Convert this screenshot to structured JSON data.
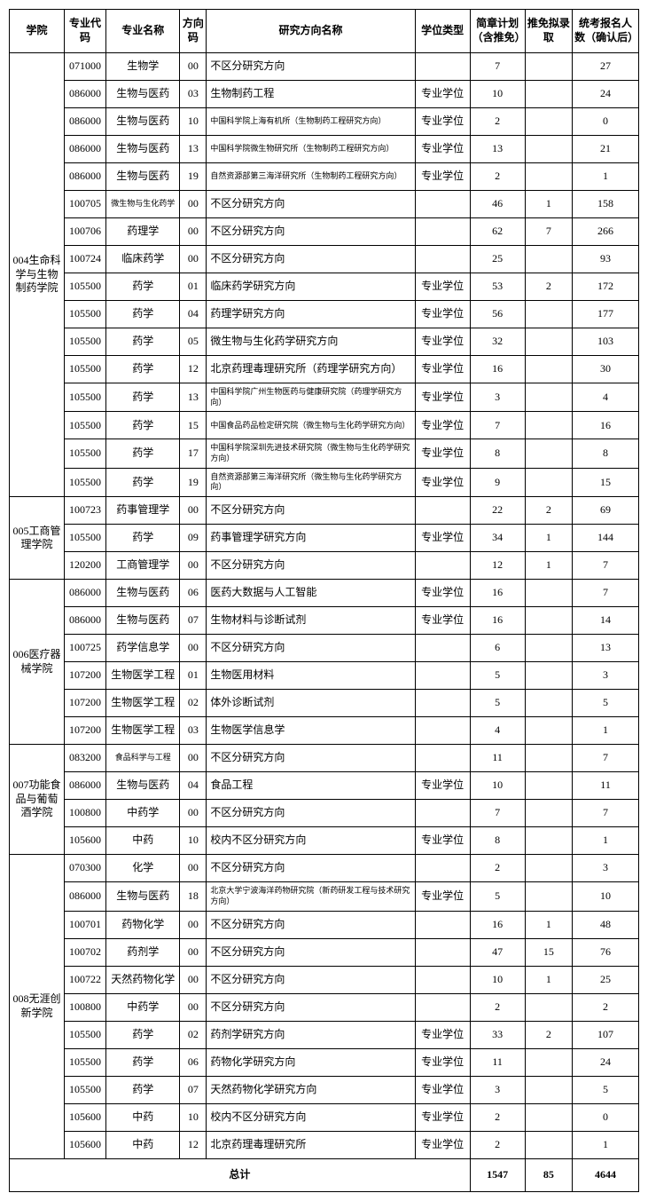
{
  "headers": {
    "college": "学院",
    "major_code": "专业代码",
    "major_name": "专业名称",
    "dir_code": "方向码",
    "dir_name": "研究方向名称",
    "deg_type": "学位类型",
    "plan": "简章计划（含推免）",
    "exempt": "推免拟录取",
    "enroll": "统考报名人数（确认后）"
  },
  "groups": [
    {
      "college": "004生命科学与生物制药学院",
      "rows": [
        {
          "mc": "071000",
          "mn": "生物学",
          "dc": "00",
          "dn": "不区分研究方向",
          "dt": "",
          "p": "7",
          "e": "",
          "en": "27",
          "small": false
        },
        {
          "mc": "086000",
          "mn": "生物与医药",
          "dc": "03",
          "dn": "生物制药工程",
          "dt": "专业学位",
          "p": "10",
          "e": "",
          "en": "24",
          "small": false
        },
        {
          "mc": "086000",
          "mn": "生物与医药",
          "dc": "10",
          "dn": "中国科学院上海有机所（生物制药工程研究方向）",
          "dt": "专业学位",
          "p": "2",
          "e": "",
          "en": "0",
          "small": true
        },
        {
          "mc": "086000",
          "mn": "生物与医药",
          "dc": "13",
          "dn": "中国科学院微生物研究所（生物制药工程研究方向）",
          "dt": "专业学位",
          "p": "13",
          "e": "",
          "en": "21",
          "small": true
        },
        {
          "mc": "086000",
          "mn": "生物与医药",
          "dc": "19",
          "dn": "自然资源部第三海洋研究所（生物制药工程研究方向）",
          "dt": "专业学位",
          "p": "2",
          "e": "",
          "en": "1",
          "small": true
        },
        {
          "mc": "100705",
          "mn": "微生物与生化药学",
          "dc": "00",
          "dn": "不区分研究方向",
          "dt": "",
          "p": "46",
          "e": "1",
          "en": "158",
          "small": false,
          "mn_small": true
        },
        {
          "mc": "100706",
          "mn": "药理学",
          "dc": "00",
          "dn": "不区分研究方向",
          "dt": "",
          "p": "62",
          "e": "7",
          "en": "266",
          "small": false
        },
        {
          "mc": "100724",
          "mn": "临床药学",
          "dc": "00",
          "dn": "不区分研究方向",
          "dt": "",
          "p": "25",
          "e": "",
          "en": "93",
          "small": false
        },
        {
          "mc": "105500",
          "mn": "药学",
          "dc": "01",
          "dn": "临床药学研究方向",
          "dt": "专业学位",
          "p": "53",
          "e": "2",
          "en": "172",
          "small": false
        },
        {
          "mc": "105500",
          "mn": "药学",
          "dc": "04",
          "dn": "药理学研究方向",
          "dt": "专业学位",
          "p": "56",
          "e": "",
          "en": "177",
          "small": false
        },
        {
          "mc": "105500",
          "mn": "药学",
          "dc": "05",
          "dn": "微生物与生化药学研究方向",
          "dt": "专业学位",
          "p": "32",
          "e": "",
          "en": "103",
          "small": false
        },
        {
          "mc": "105500",
          "mn": "药学",
          "dc": "12",
          "dn": "北京药理毒理研究所（药理学研究方向）",
          "dt": "专业学位",
          "p": "16",
          "e": "",
          "en": "30",
          "small": false
        },
        {
          "mc": "105500",
          "mn": "药学",
          "dc": "13",
          "dn": "中国科学院广州生物医药与健康研究院（药理学研究方向）",
          "dt": "专业学位",
          "p": "3",
          "e": "",
          "en": "4",
          "small": true
        },
        {
          "mc": "105500",
          "mn": "药学",
          "dc": "15",
          "dn": "中国食品药品检定研究院（微生物与生化药学研究方向）",
          "dt": "专业学位",
          "p": "7",
          "e": "",
          "en": "16",
          "small": true
        },
        {
          "mc": "105500",
          "mn": "药学",
          "dc": "17",
          "dn": "中国科学院深圳先进技术研究院（微生物与生化药学研究方向）",
          "dt": "专业学位",
          "p": "8",
          "e": "",
          "en": "8",
          "small": true
        },
        {
          "mc": "105500",
          "mn": "药学",
          "dc": "19",
          "dn": "自然资源部第三海洋研究所（微生物与生化药学研究方向）",
          "dt": "专业学位",
          "p": "9",
          "e": "",
          "en": "15",
          "small": true
        }
      ]
    },
    {
      "college": "005工商管理学院",
      "rows": [
        {
          "mc": "100723",
          "mn": "药事管理学",
          "dc": "00",
          "dn": "不区分研究方向",
          "dt": "",
          "p": "22",
          "e": "2",
          "en": "69",
          "small": false
        },
        {
          "mc": "105500",
          "mn": "药学",
          "dc": "09",
          "dn": "药事管理学研究方向",
          "dt": "专业学位",
          "p": "34",
          "e": "1",
          "en": "144",
          "small": false
        },
        {
          "mc": "120200",
          "mn": "工商管理学",
          "dc": "00",
          "dn": "不区分研究方向",
          "dt": "",
          "p": "12",
          "e": "1",
          "en": "7",
          "small": false
        }
      ]
    },
    {
      "college": "006医疗器械学院",
      "rows": [
        {
          "mc": "086000",
          "mn": "生物与医药",
          "dc": "06",
          "dn": "医药大数据与人工智能",
          "dt": "专业学位",
          "p": "16",
          "e": "",
          "en": "7",
          "small": false
        },
        {
          "mc": "086000",
          "mn": "生物与医药",
          "dc": "07",
          "dn": "生物材料与诊断试剂",
          "dt": "专业学位",
          "p": "16",
          "e": "",
          "en": "14",
          "small": false
        },
        {
          "mc": "100725",
          "mn": "药学信息学",
          "dc": "00",
          "dn": "不区分研究方向",
          "dt": "",
          "p": "6",
          "e": "",
          "en": "13",
          "small": false
        },
        {
          "mc": "107200",
          "mn": "生物医学工程",
          "dc": "01",
          "dn": "生物医用材料",
          "dt": "",
          "p": "5",
          "e": "",
          "en": "3",
          "small": false
        },
        {
          "mc": "107200",
          "mn": "生物医学工程",
          "dc": "02",
          "dn": "体外诊断试剂",
          "dt": "",
          "p": "5",
          "e": "",
          "en": "5",
          "small": false
        },
        {
          "mc": "107200",
          "mn": "生物医学工程",
          "dc": "03",
          "dn": "生物医学信息学",
          "dt": "",
          "p": "4",
          "e": "",
          "en": "1",
          "small": false
        }
      ]
    },
    {
      "college": "007功能食品与葡萄酒学院",
      "rows": [
        {
          "mc": "083200",
          "mn": "食品科学与工程",
          "dc": "00",
          "dn": "不区分研究方向",
          "dt": "",
          "p": "11",
          "e": "",
          "en": "7",
          "small": false,
          "mn_small": true
        },
        {
          "mc": "086000",
          "mn": "生物与医药",
          "dc": "04",
          "dn": "食品工程",
          "dt": "专业学位",
          "p": "10",
          "e": "",
          "en": "11",
          "small": false
        },
        {
          "mc": "100800",
          "mn": "中药学",
          "dc": "00",
          "dn": "不区分研究方向",
          "dt": "",
          "p": "7",
          "e": "",
          "en": "7",
          "small": false
        },
        {
          "mc": "105600",
          "mn": "中药",
          "dc": "10",
          "dn": "校内不区分研究方向",
          "dt": "专业学位",
          "p": "8",
          "e": "",
          "en": "1",
          "small": false
        }
      ]
    },
    {
      "college": "008无涯创新学院",
      "rows": [
        {
          "mc": "070300",
          "mn": "化学",
          "dc": "00",
          "dn": "不区分研究方向",
          "dt": "",
          "p": "2",
          "e": "",
          "en": "3",
          "small": false
        },
        {
          "mc": "086000",
          "mn": "生物与医药",
          "dc": "18",
          "dn": "北京大学宁波海洋药物研究院（新药研发工程与技术研究方向）",
          "dt": "专业学位",
          "p": "5",
          "e": "",
          "en": "10",
          "small": true
        },
        {
          "mc": "100701",
          "mn": "药物化学",
          "dc": "00",
          "dn": "不区分研究方向",
          "dt": "",
          "p": "16",
          "e": "1",
          "en": "48",
          "small": false
        },
        {
          "mc": "100702",
          "mn": "药剂学",
          "dc": "00",
          "dn": "不区分研究方向",
          "dt": "",
          "p": "47",
          "e": "15",
          "en": "76",
          "small": false
        },
        {
          "mc": "100722",
          "mn": "天然药物化学",
          "dc": "00",
          "dn": "不区分研究方向",
          "dt": "",
          "p": "10",
          "e": "1",
          "en": "25",
          "small": false
        },
        {
          "mc": "100800",
          "mn": "中药学",
          "dc": "00",
          "dn": "不区分研究方向",
          "dt": "",
          "p": "2",
          "e": "",
          "en": "2",
          "small": false
        },
        {
          "mc": "105500",
          "mn": "药学",
          "dc": "02",
          "dn": "药剂学研究方向",
          "dt": "专业学位",
          "p": "33",
          "e": "2",
          "en": "107",
          "small": false
        },
        {
          "mc": "105500",
          "mn": "药学",
          "dc": "06",
          "dn": "药物化学研究方向",
          "dt": "专业学位",
          "p": "11",
          "e": "",
          "en": "24",
          "small": false
        },
        {
          "mc": "105500",
          "mn": "药学",
          "dc": "07",
          "dn": "天然药物化学研究方向",
          "dt": "专业学位",
          "p": "3",
          "e": "",
          "en": "5",
          "small": false
        },
        {
          "mc": "105600",
          "mn": "中药",
          "dc": "10",
          "dn": "校内不区分研究方向",
          "dt": "专业学位",
          "p": "2",
          "e": "",
          "en": "0",
          "small": false
        },
        {
          "mc": "105600",
          "mn": "中药",
          "dc": "12",
          "dn": "北京药理毒理研究所",
          "dt": "专业学位",
          "p": "2",
          "e": "",
          "en": "1",
          "small": false
        }
      ]
    }
  ],
  "total": {
    "label": "总计",
    "plan": "1547",
    "exempt": "85",
    "enroll": "4644"
  }
}
